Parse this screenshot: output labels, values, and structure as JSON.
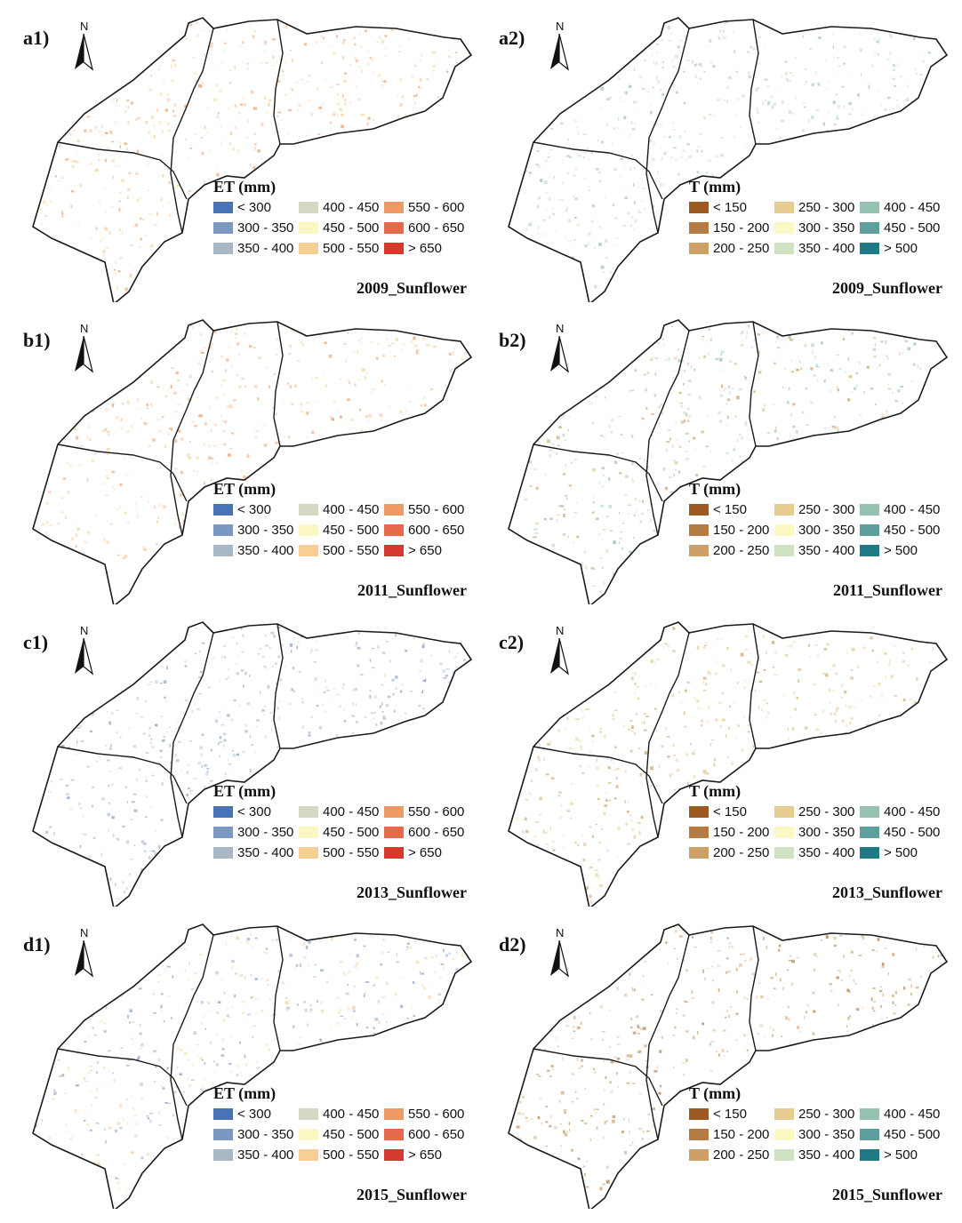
{
  "north_letter": "N",
  "et_legend": {
    "title": "ET (mm)",
    "classes": [
      {
        "label": "< 300",
        "color": "#4a72b6"
      },
      {
        "label": "300 - 350",
        "color": "#7c98c0"
      },
      {
        "label": "350 - 400",
        "color": "#a9b8c6"
      },
      {
        "label": "400 - 450",
        "color": "#d4d8c2"
      },
      {
        "label": "450 - 500",
        "color": "#fbf7c4"
      },
      {
        "label": "500 - 550",
        "color": "#f6cf94"
      },
      {
        "label": "550 - 600",
        "color": "#ef9a66"
      },
      {
        "label": "600 - 650",
        "color": "#e66a4a"
      },
      {
        "label": "> 650",
        "color": "#d63a2e"
      }
    ]
  },
  "t_legend": {
    "title": "T (mm)",
    "classes": [
      {
        "label": "< 150",
        "color": "#9a5a22"
      },
      {
        "label": "150 - 200",
        "color": "#b47c42"
      },
      {
        "label": "200 - 250",
        "color": "#cca066"
      },
      {
        "label": "250 - 300",
        "color": "#e6cc90"
      },
      {
        "label": "300 - 350",
        "color": "#fbf8c6"
      },
      {
        "label": "350 - 400",
        "color": "#cfe2c2"
      },
      {
        "label": "400 - 450",
        "color": "#98c2b0"
      },
      {
        "label": "450 - 500",
        "color": "#5e9e9c"
      },
      {
        "label": "> 500",
        "color": "#1f7a86"
      }
    ]
  },
  "panels": [
    {
      "label": "a1)",
      "caption": "2009_Sunflower",
      "variable": "ET",
      "dominant_colors": [
        "#f6cf94",
        "#ef9a66"
      ]
    },
    {
      "label": "a2)",
      "caption": "2009_Sunflower",
      "variable": "T",
      "dominant_colors": [
        "#cfe2c2",
        "#98c2b0"
      ]
    },
    {
      "label": "b1)",
      "caption": "2011_Sunflower",
      "variable": "ET",
      "dominant_colors": [
        "#f6cf94",
        "#ef9a66"
      ]
    },
    {
      "label": "b2)",
      "caption": "2011_Sunflower",
      "variable": "T",
      "dominant_colors": [
        "#98c2b0",
        "#cca066"
      ]
    },
    {
      "label": "c1)",
      "caption": "2013_Sunflower",
      "variable": "ET",
      "dominant_colors": [
        "#7c98c0",
        "#a9b8c6"
      ]
    },
    {
      "label": "c2)",
      "caption": "2013_Sunflower",
      "variable": "T",
      "dominant_colors": [
        "#e6cc90",
        "#cca066"
      ]
    },
    {
      "label": "d1)",
      "caption": "2015_Sunflower",
      "variable": "ET",
      "dominant_colors": [
        "#7c98c0",
        "#f6cf94"
      ]
    },
    {
      "label": "d2)",
      "caption": "2015_Sunflower",
      "variable": "T",
      "dominant_colors": [
        "#b47c42",
        "#cca066"
      ]
    }
  ]
}
